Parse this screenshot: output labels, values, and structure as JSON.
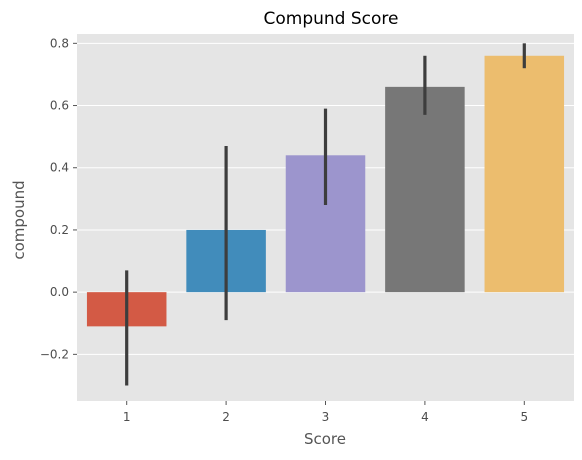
{
  "chart_data": {
    "type": "bar",
    "title": "Compund Score",
    "xlabel": "Score",
    "ylabel": "compound",
    "categories": [
      "1",
      "2",
      "3",
      "4",
      "5"
    ],
    "values": [
      -0.11,
      0.2,
      0.44,
      0.66,
      0.76
    ],
    "error_bars": [
      [
        -0.3,
        0.07
      ],
      [
        -0.09,
        0.47
      ],
      [
        0.28,
        0.59
      ],
      [
        0.57,
        0.76
      ],
      [
        0.72,
        0.8
      ]
    ],
    "colors": [
      "#d35a45",
      "#418cbb",
      "#9c95cd",
      "#777777",
      "#ecbd6e"
    ],
    "y_ticks": [
      -0.2,
      0.0,
      0.2,
      0.4,
      0.6,
      0.8
    ],
    "y_tick_labels": [
      "−0.2",
      "0.0",
      "0.2",
      "0.4",
      "0.6",
      "0.8"
    ],
    "ylim": [
      -0.35,
      0.83
    ],
    "grid": true,
    "background": "#e5e5e5",
    "gridline_color": "#ffffff",
    "error_bar_color": "#3d3d3d"
  }
}
